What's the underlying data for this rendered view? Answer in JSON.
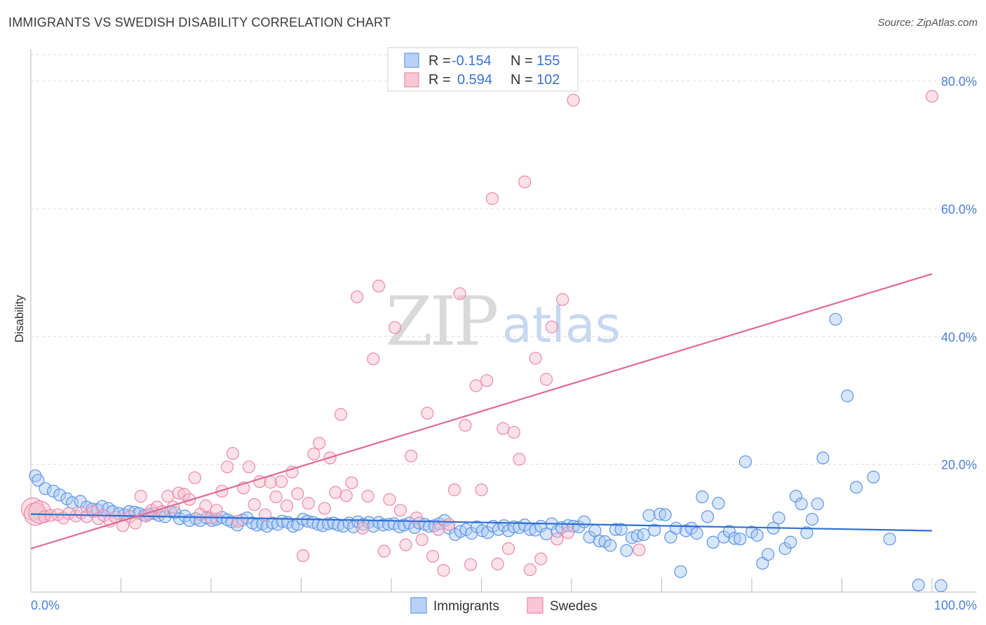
{
  "title": "IMMIGRANTS VS SWEDISH DISABILITY CORRELATION CHART",
  "source": "Source: ZipAtlas.com",
  "watermark": {
    "zip": "ZIP",
    "atlas": "atlas"
  },
  "legend": {
    "rows": [
      {
        "r_label": "R =",
        "r_value": "-0.154",
        "n_label": "N =",
        "n_value": "155",
        "color": "#7aaaf0"
      },
      {
        "r_label": "R =",
        "r_value": "0.594",
        "n_label": "N =",
        "n_value": "102",
        "color": "#f29ab4"
      }
    ]
  },
  "bottom_legend": [
    {
      "label": "Immigrants",
      "color": "#7aaaf0"
    },
    {
      "label": "Swedes",
      "color": "#f29ab4"
    }
  ],
  "chart_data": {
    "type": "scatter",
    "title": "IMMIGRANTS VS SWEDISH DISABILITY CORRELATION CHART",
    "xlabel": "",
    "ylabel": "Disability",
    "xlim": [
      0,
      100
    ],
    "ylim": [
      0,
      85
    ],
    "x_tick_labels": [
      "0.0%",
      "100.0%"
    ],
    "y_ticks": [
      20,
      40,
      60,
      80
    ],
    "y_tick_labels": [
      "20.0%",
      "40.0%",
      "60.0%",
      "80.0%"
    ],
    "grid": true,
    "legend_position": "top-center",
    "series": [
      {
        "name": "Immigrants",
        "color": "#7aaaf0",
        "line_color": "#2f6fd0",
        "trend": {
          "x": [
            0,
            100
          ],
          "y": [
            12.2,
            9.6
          ]
        },
        "points": [
          [
            0.5,
            18.2
          ],
          [
            0.8,
            17.5
          ],
          [
            1.6,
            16.2
          ],
          [
            2.5,
            15.8
          ],
          [
            3.2,
            15.2
          ],
          [
            4.0,
            14.6
          ],
          [
            4.6,
            14.0
          ],
          [
            5.5,
            14.2
          ],
          [
            6.2,
            13.3
          ],
          [
            6.8,
            13.0
          ],
          [
            7.4,
            12.9
          ],
          [
            7.9,
            13.4
          ],
          [
            8.6,
            13.1
          ],
          [
            9.1,
            12.6
          ],
          [
            9.8,
            12.3
          ],
          [
            10.4,
            12.1
          ],
          [
            10.9,
            12.6
          ],
          [
            11.5,
            12.5
          ],
          [
            12.0,
            12.3
          ],
          [
            12.6,
            12.0
          ],
          [
            13.1,
            12.2
          ],
          [
            13.7,
            12.3
          ],
          [
            14.2,
            12.0
          ],
          [
            14.9,
            11.8
          ],
          [
            15.5,
            12.6
          ],
          [
            16.0,
            12.4
          ],
          [
            16.5,
            11.5
          ],
          [
            17.1,
            11.9
          ],
          [
            17.6,
            11.2
          ],
          [
            18.3,
            11.5
          ],
          [
            18.8,
            11.2
          ],
          [
            19.5,
            11.6
          ],
          [
            20.1,
            11.2
          ],
          [
            20.6,
            11.4
          ],
          [
            21.2,
            11.7
          ],
          [
            21.8,
            11.3
          ],
          [
            22.3,
            11.0
          ],
          [
            22.9,
            10.5
          ],
          [
            23.5,
            11.3
          ],
          [
            24.0,
            11.6
          ],
          [
            24.6,
            10.8
          ],
          [
            25.1,
            10.5
          ],
          [
            25.7,
            10.7
          ],
          [
            26.2,
            10.3
          ],
          [
            26.8,
            10.8
          ],
          [
            27.4,
            10.6
          ],
          [
            27.9,
            11.1
          ],
          [
            28.5,
            10.9
          ],
          [
            29.1,
            10.3
          ],
          [
            29.6,
            10.6
          ],
          [
            30.2,
            11.4
          ],
          [
            30.7,
            11.1
          ],
          [
            31.3,
            10.9
          ],
          [
            31.9,
            10.6
          ],
          [
            32.4,
            10.4
          ],
          [
            33.0,
            10.7
          ],
          [
            33.6,
            10.8
          ],
          [
            34.1,
            10.5
          ],
          [
            34.7,
            10.3
          ],
          [
            35.3,
            10.8
          ],
          [
            35.8,
            10.2
          ],
          [
            36.3,
            11.0
          ],
          [
            36.9,
            10.6
          ],
          [
            37.5,
            10.9
          ],
          [
            38.0,
            10.3
          ],
          [
            38.6,
            10.9
          ],
          [
            39.1,
            10.5
          ],
          [
            39.7,
            10.6
          ],
          [
            40.3,
            10.7
          ],
          [
            40.9,
            10.2
          ],
          [
            41.4,
            10.5
          ],
          [
            42.0,
            10.8
          ],
          [
            42.6,
            10.1
          ],
          [
            43.1,
            10.8
          ],
          [
            43.7,
            10.6
          ],
          [
            44.2,
            10.3
          ],
          [
            44.8,
            10.4
          ],
          [
            45.3,
            10.7
          ],
          [
            45.9,
            11.2
          ],
          [
            46.4,
            10.0
          ],
          [
            47.1,
            9.0
          ],
          [
            47.7,
            9.5
          ],
          [
            48.3,
            9.8
          ],
          [
            48.9,
            9.2
          ],
          [
            49.5,
            10.2
          ],
          [
            50.1,
            9.6
          ],
          [
            50.7,
            9.3
          ],
          [
            51.3,
            10.3
          ],
          [
            51.9,
            9.8
          ],
          [
            52.5,
            10.4
          ],
          [
            53.0,
            9.6
          ],
          [
            53.6,
            10.2
          ],
          [
            54.2,
            10.1
          ],
          [
            54.8,
            10.5
          ],
          [
            55.4,
            9.8
          ],
          [
            56.0,
            9.7
          ],
          [
            56.6,
            10.3
          ],
          [
            57.2,
            9.1
          ],
          [
            57.8,
            10.7
          ],
          [
            58.4,
            9.5
          ],
          [
            58.9,
            10.1
          ],
          [
            59.6,
            10.4
          ],
          [
            60.2,
            10.3
          ],
          [
            60.8,
            10.2
          ],
          [
            61.4,
            11.0
          ],
          [
            62.0,
            8.6
          ],
          [
            62.6,
            9.6
          ],
          [
            63.1,
            8.0
          ],
          [
            63.7,
            7.9
          ],
          [
            64.3,
            7.3
          ],
          [
            64.9,
            9.8
          ],
          [
            65.5,
            9.8
          ],
          [
            66.1,
            6.5
          ],
          [
            66.7,
            8.5
          ],
          [
            67.3,
            8.8
          ],
          [
            68.0,
            9.0
          ],
          [
            68.6,
            12.0
          ],
          [
            69.2,
            9.7
          ],
          [
            69.8,
            12.2
          ],
          [
            70.4,
            12.1
          ],
          [
            71.0,
            8.6
          ],
          [
            71.6,
            10.0
          ],
          [
            72.1,
            3.2
          ],
          [
            72.7,
            9.6
          ],
          [
            73.3,
            10.0
          ],
          [
            73.9,
            9.2
          ],
          [
            74.5,
            14.9
          ],
          [
            75.1,
            11.8
          ],
          [
            75.7,
            7.8
          ],
          [
            76.3,
            13.9
          ],
          [
            76.9,
            8.6
          ],
          [
            77.5,
            9.5
          ],
          [
            78.1,
            8.4
          ],
          [
            78.7,
            8.3
          ],
          [
            79.3,
            20.4
          ],
          [
            80.0,
            9.4
          ],
          [
            80.6,
            8.9
          ],
          [
            81.2,
            4.5
          ],
          [
            81.8,
            5.9
          ],
          [
            82.4,
            10.0
          ],
          [
            83.0,
            11.6
          ],
          [
            83.7,
            6.8
          ],
          [
            84.3,
            7.8
          ],
          [
            84.9,
            15.0
          ],
          [
            85.5,
            13.8
          ],
          [
            86.1,
            9.3
          ],
          [
            86.7,
            11.4
          ],
          [
            87.3,
            13.8
          ],
          [
            87.9,
            21.0
          ],
          [
            89.3,
            42.7
          ],
          [
            90.6,
            30.7
          ],
          [
            91.6,
            16.4
          ],
          [
            93.5,
            18.0
          ],
          [
            95.3,
            8.3
          ],
          [
            98.5,
            1.1
          ],
          [
            101.0,
            1.0
          ]
        ]
      },
      {
        "name": "Swedes",
        "color": "#f29ab4",
        "line_color": "#e06a93",
        "trend": {
          "x": [
            0,
            100
          ],
          "y": [
            6.8,
            49.8
          ]
        },
        "points": [
          [
            0.2,
            13.0
          ],
          [
            0.5,
            12.2
          ],
          [
            1.0,
            12.5
          ],
          [
            1.5,
            11.8
          ],
          [
            2.2,
            12.0
          ],
          [
            3.0,
            12.1
          ],
          [
            3.6,
            11.6
          ],
          [
            4.2,
            12.3
          ],
          [
            5.0,
            11.9
          ],
          [
            5.6,
            12.4
          ],
          [
            6.2,
            11.8
          ],
          [
            6.9,
            12.6
          ],
          [
            7.5,
            11.5
          ],
          [
            8.1,
            12.0
          ],
          [
            8.8,
            11.1
          ],
          [
            9.4,
            11.7
          ],
          [
            10.2,
            10.4
          ],
          [
            11.0,
            11.8
          ],
          [
            11.6,
            10.8
          ],
          [
            12.2,
            15.0
          ],
          [
            12.8,
            11.9
          ],
          [
            13.4,
            12.8
          ],
          [
            14.0,
            13.3
          ],
          [
            14.6,
            12.6
          ],
          [
            15.2,
            15.0
          ],
          [
            15.8,
            13.3
          ],
          [
            16.4,
            15.5
          ],
          [
            17.0,
            15.3
          ],
          [
            17.6,
            14.5
          ],
          [
            18.2,
            17.9
          ],
          [
            18.8,
            12.2
          ],
          [
            19.4,
            13.5
          ],
          [
            20.0,
            11.6
          ],
          [
            20.6,
            12.8
          ],
          [
            21.2,
            15.8
          ],
          [
            21.8,
            19.6
          ],
          [
            22.4,
            21.7
          ],
          [
            23.0,
            11.1
          ],
          [
            23.6,
            16.3
          ],
          [
            24.2,
            19.6
          ],
          [
            24.8,
            13.7
          ],
          [
            25.4,
            17.3
          ],
          [
            26.0,
            12.1
          ],
          [
            26.6,
            17.2
          ],
          [
            27.2,
            14.9
          ],
          [
            27.8,
            17.3
          ],
          [
            28.4,
            13.5
          ],
          [
            29.0,
            18.8
          ],
          [
            29.6,
            15.4
          ],
          [
            30.2,
            5.7
          ],
          [
            30.8,
            13.9
          ],
          [
            31.4,
            21.6
          ],
          [
            32.0,
            23.3
          ],
          [
            32.6,
            13.1
          ],
          [
            33.2,
            21.0
          ],
          [
            33.8,
            15.6
          ],
          [
            34.4,
            27.8
          ],
          [
            35.0,
            15.1
          ],
          [
            35.6,
            17.1
          ],
          [
            36.2,
            46.2
          ],
          [
            36.8,
            10.0
          ],
          [
            37.4,
            15.0
          ],
          [
            38.0,
            36.5
          ],
          [
            38.6,
            47.9
          ],
          [
            39.2,
            6.4
          ],
          [
            39.8,
            14.5
          ],
          [
            40.4,
            41.4
          ],
          [
            41.0,
            12.8
          ],
          [
            41.6,
            7.4
          ],
          [
            42.2,
            21.3
          ],
          [
            42.8,
            11.6
          ],
          [
            43.4,
            8.2
          ],
          [
            44.0,
            28.0
          ],
          [
            44.6,
            5.6
          ],
          [
            45.2,
            9.8
          ],
          [
            45.8,
            3.4
          ],
          [
            46.4,
            10.6
          ],
          [
            47.0,
            16.0
          ],
          [
            47.6,
            46.7
          ],
          [
            48.2,
            26.1
          ],
          [
            48.8,
            4.3
          ],
          [
            49.4,
            32.3
          ],
          [
            50.0,
            16.0
          ],
          [
            50.6,
            33.1
          ],
          [
            51.2,
            61.6
          ],
          [
            51.8,
            4.4
          ],
          [
            52.4,
            25.6
          ],
          [
            53.0,
            6.8
          ],
          [
            53.6,
            25.0
          ],
          [
            54.2,
            20.8
          ],
          [
            54.8,
            64.2
          ],
          [
            55.4,
            3.5
          ],
          [
            56.0,
            36.6
          ],
          [
            56.6,
            5.2
          ],
          [
            57.2,
            33.3
          ],
          [
            57.8,
            41.5
          ],
          [
            58.4,
            8.3
          ],
          [
            59.0,
            45.8
          ],
          [
            59.6,
            9.3
          ],
          [
            60.2,
            77.0
          ],
          [
            67.5,
            6.6
          ],
          [
            100.0,
            77.6
          ]
        ]
      }
    ]
  }
}
